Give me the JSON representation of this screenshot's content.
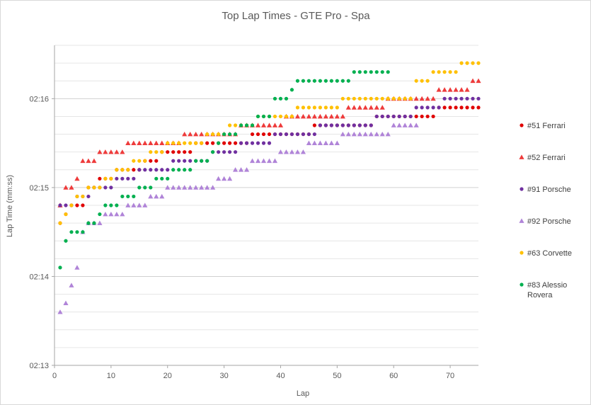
{
  "chart_data": {
    "type": "scatter",
    "title": "Top Lap Times - GTE Pro - Spa",
    "xlabel": "Lap",
    "ylabel": "Lap Time (mm:ss)",
    "xlim": [
      0,
      75
    ],
    "ylim": [
      "02:13",
      "02:16.6"
    ],
    "x_ticks": [
      "0",
      "10",
      "20",
      "30",
      "40",
      "50",
      "60",
      "70"
    ],
    "y_ticks": [
      "02:13",
      "02:14",
      "02:15",
      "02:16"
    ],
    "grid": "horizontal",
    "legend_position": "right",
    "series": [
      {
        "name": "#51 Ferrari",
        "marker": "circle",
        "color": "#e00000",
        "x": [
          1,
          2,
          3,
          4,
          5,
          6,
          7,
          8,
          9,
          10,
          11,
          12,
          13,
          14,
          15,
          16,
          17,
          18,
          19,
          20,
          21,
          22,
          23,
          24,
          25,
          26,
          27,
          28,
          29,
          30,
          31,
          32,
          33,
          34,
          35,
          36,
          37,
          38,
          39,
          40,
          41,
          42,
          43,
          44,
          45,
          46,
          47,
          48,
          49,
          50,
          51,
          52,
          53,
          54,
          55,
          56,
          57,
          58,
          59,
          60,
          61,
          62,
          63,
          64,
          65,
          66,
          67,
          68,
          69,
          70,
          71,
          72,
          73,
          74,
          75
        ],
        "y": [
          "02:14.6",
          "02:14.7",
          "02:14.8",
          "02:14.8",
          "02:14.8",
          "02:15",
          "02:15",
          "02:15.1",
          "02:15.1",
          "02:15.1",
          "02:15.2",
          "02:15.2",
          "02:15.2",
          "02:15.2",
          "02:15.2",
          "02:15.3",
          "02:15.3",
          "02:15.3",
          "02:15.4",
          "02:15.4",
          "02:15.4",
          "02:15.4",
          "02:15.4",
          "02:15.4",
          "02:15.5",
          "02:15.5",
          "02:15.5",
          "02:15.5",
          "02:15.5",
          "02:15.5",
          "02:15.5",
          "02:15.5",
          "02:15.5",
          "02:15.5",
          "02:15.6",
          "02:15.6",
          "02:15.6",
          "02:15.6",
          "02:15.6",
          "02:15.6",
          "02:15.6",
          "02:15.6",
          "02:15.6",
          "02:15.6",
          "02:15.6",
          "02:15.7",
          "02:15.7",
          "02:15.7",
          "02:15.7",
          "02:15.7",
          "02:15.7",
          "02:15.7",
          "02:15.7",
          "02:15.7",
          "02:15.7",
          "02:15.7",
          "02:15.8",
          "02:15.8",
          "02:15.8",
          "02:15.8",
          "02:15.8",
          "02:15.8",
          "02:15.8",
          "02:15.8",
          "02:15.8",
          "02:15.8",
          "02:15.8",
          "02:15.9",
          "02:15.9",
          "02:15.9",
          "02:15.9",
          "02:15.9",
          "02:15.9",
          "02:15.9",
          "02:15.9"
        ]
      },
      {
        "name": "#52 Ferrari",
        "marker": "triangle",
        "color": "#ee3b3b",
        "x": [
          1,
          2,
          3,
          4,
          5,
          6,
          7,
          8,
          9,
          10,
          11,
          12,
          13,
          14,
          15,
          16,
          17,
          18,
          19,
          20,
          21,
          22,
          23,
          24,
          25,
          26,
          27,
          28,
          29,
          30,
          31,
          32,
          33,
          34,
          35,
          36,
          37,
          38,
          39,
          40,
          41,
          42,
          43,
          44,
          45,
          46,
          47,
          48,
          49,
          50,
          51,
          52,
          53,
          54,
          55,
          56,
          57,
          58,
          59,
          60,
          61,
          62,
          63,
          64,
          65,
          66,
          67,
          68,
          69,
          70,
          71,
          72,
          73,
          74,
          75
        ],
        "y": [
          "02:14.8",
          "02:15",
          "02:15",
          "02:15.1",
          "02:15.3",
          "02:15.3",
          "02:15.3",
          "02:15.4",
          "02:15.4",
          "02:15.4",
          "02:15.4",
          "02:15.4",
          "02:15.5",
          "02:15.5",
          "02:15.5",
          "02:15.5",
          "02:15.5",
          "02:15.5",
          "02:15.5",
          "02:15.5",
          "02:15.5",
          "02:15.5",
          "02:15.6",
          "02:15.6",
          "02:15.6",
          "02:15.6",
          "02:15.6",
          "02:15.6",
          "02:15.6",
          "02:15.6",
          "02:15.6",
          "02:15.6",
          "02:15.7",
          "02:15.7",
          "02:15.7",
          "02:15.7",
          "02:15.7",
          "02:15.7",
          "02:15.7",
          "02:15.7",
          "02:15.8",
          "02:15.8",
          "02:15.8",
          "02:15.8",
          "02:15.8",
          "02:15.8",
          "02:15.8",
          "02:15.8",
          "02:15.8",
          "02:15.8",
          "02:15.8",
          "02:15.9",
          "02:15.9",
          "02:15.9",
          "02:15.9",
          "02:15.9",
          "02:15.9",
          "02:15.9",
          "02:16",
          "02:16",
          "02:16",
          "02:16",
          "02:16",
          "02:16",
          "02:16",
          "02:16",
          "02:16",
          "02:16.1",
          "02:16.1",
          "02:16.1",
          "02:16.1",
          "02:16.1",
          "02:16.1",
          "02:16.2",
          "02:16.2"
        ]
      },
      {
        "name": "#91 Porsche",
        "marker": "circle",
        "color": "#7030a0",
        "x": [
          1,
          2,
          3,
          4,
          5,
          6,
          7,
          8,
          9,
          10,
          11,
          12,
          13,
          14,
          15,
          16,
          17,
          18,
          19,
          20,
          21,
          22,
          23,
          24,
          25,
          26,
          27,
          28,
          29,
          30,
          31,
          32,
          33,
          34,
          35,
          36,
          37,
          38,
          39,
          40,
          41,
          42,
          43,
          44,
          45,
          46,
          47,
          48,
          49,
          50,
          51,
          52,
          53,
          54,
          55,
          56,
          57,
          58,
          59,
          60,
          61,
          62,
          63,
          64,
          65,
          66,
          67,
          68,
          69,
          70,
          71,
          72,
          73,
          74,
          75
        ],
        "y": [
          "02:14.8",
          "02:14.8",
          "02:14.8",
          "02:14.9",
          "02:14.9",
          "02:14.9",
          "02:15",
          "02:15",
          "02:15",
          "02:15",
          "02:15.1",
          "02:15.1",
          "02:15.1",
          "02:15.1",
          "02:15.2",
          "02:15.2",
          "02:15.2",
          "02:15.2",
          "02:15.2",
          "02:15.2",
          "02:15.3",
          "02:15.3",
          "02:15.3",
          "02:15.3",
          "02:15.3",
          "02:15.3",
          "02:15.3",
          "02:15.4",
          "02:15.4",
          "02:15.4",
          "02:15.4",
          "02:15.4",
          "02:15.5",
          "02:15.5",
          "02:15.5",
          "02:15.5",
          "02:15.5",
          "02:15.5",
          "02:15.6",
          "02:15.6",
          "02:15.6",
          "02:15.6",
          "02:15.6",
          "02:15.6",
          "02:15.6",
          "02:15.6",
          "02:15.7",
          "02:15.7",
          "02:15.7",
          "02:15.7",
          "02:15.7",
          "02:15.7",
          "02:15.7",
          "02:15.7",
          "02:15.7",
          "02:15.7",
          "02:15.8",
          "02:15.8",
          "02:15.8",
          "02:15.8",
          "02:15.8",
          "02:15.8",
          "02:15.8",
          "02:15.9",
          "02:15.9",
          "02:15.9",
          "02:15.9",
          "02:15.9",
          "02:16",
          "02:16",
          "02:16",
          "02:16",
          "02:16",
          "02:16",
          "02:16"
        ]
      },
      {
        "name": "#92 Porsche",
        "marker": "triangle",
        "color": "#b084d8",
        "x": [
          1,
          2,
          3,
          4,
          5,
          6,
          7,
          8,
          9,
          10,
          11,
          12,
          13,
          14,
          15,
          16,
          17,
          18,
          19,
          20,
          21,
          22,
          23,
          24,
          25,
          26,
          27,
          28,
          29,
          30,
          31,
          32,
          33,
          34,
          35,
          36,
          37,
          38,
          39,
          40,
          41,
          42,
          43,
          44,
          45,
          46,
          47,
          48,
          49,
          50,
          51,
          52,
          53,
          54,
          55,
          56,
          57,
          58,
          59,
          60,
          61,
          62,
          63,
          64
        ],
        "y": [
          "02:13.6",
          "02:13.7",
          "02:13.9",
          "02:14.1",
          "02:14.5",
          "02:14.6",
          "02:14.6",
          "02:14.6",
          "02:14.7",
          "02:14.7",
          "02:14.7",
          "02:14.7",
          "02:14.8",
          "02:14.8",
          "02:14.8",
          "02:14.8",
          "02:14.9",
          "02:14.9",
          "02:14.9",
          "02:15",
          "02:15",
          "02:15",
          "02:15",
          "02:15",
          "02:15",
          "02:15",
          "02:15",
          "02:15",
          "02:15.1",
          "02:15.1",
          "02:15.1",
          "02:15.2",
          "02:15.2",
          "02:15.2",
          "02:15.3",
          "02:15.3",
          "02:15.3",
          "02:15.3",
          "02:15.3",
          "02:15.4",
          "02:15.4",
          "02:15.4",
          "02:15.4",
          "02:15.4",
          "02:15.5",
          "02:15.5",
          "02:15.5",
          "02:15.5",
          "02:15.5",
          "02:15.5",
          "02:15.6",
          "02:15.6",
          "02:15.6",
          "02:15.6",
          "02:15.6",
          "02:15.6",
          "02:15.6",
          "02:15.6",
          "02:15.6",
          "02:15.7",
          "02:15.7",
          "02:15.7",
          "02:15.7",
          "02:15.7"
        ]
      },
      {
        "name": "#63 Corvette",
        "marker": "circle",
        "color": "#ffc000",
        "x": [
          1,
          2,
          3,
          4,
          5,
          6,
          7,
          8,
          9,
          10,
          11,
          12,
          13,
          14,
          15,
          16,
          17,
          18,
          19,
          20,
          21,
          22,
          23,
          24,
          25,
          26,
          27,
          28,
          29,
          30,
          31,
          32,
          33,
          34,
          35,
          36,
          37,
          38,
          39,
          40,
          41,
          42,
          43,
          44,
          45,
          46,
          47,
          48,
          49,
          50,
          51,
          52,
          53,
          54,
          55,
          56,
          57,
          58,
          59,
          60,
          61,
          62,
          63,
          64,
          65,
          66,
          67,
          68,
          69,
          70,
          71,
          72,
          73,
          74,
          75
        ],
        "y": [
          "02:14.6",
          "02:14.7",
          "02:14.8",
          "02:14.9",
          "02:14.9",
          "02:15",
          "02:15",
          "02:15",
          "02:15.1",
          "02:15.1",
          "02:15.2",
          "02:15.2",
          "02:15.2",
          "02:15.3",
          "02:15.3",
          "02:15.3",
          "02:15.4",
          "02:15.4",
          "02:15.4",
          "02:15.5",
          "02:15.5",
          "02:15.5",
          "02:15.5",
          "02:15.5",
          "02:15.5",
          "02:15.5",
          "02:15.6",
          "02:15.6",
          "02:15.6",
          "02:15.6",
          "02:15.7",
          "02:15.7",
          "02:15.7",
          "02:15.7",
          "02:15.7",
          "02:15.8",
          "02:15.8",
          "02:15.8",
          "02:15.8",
          "02:15.8",
          "02:15.8",
          "02:15.8",
          "02:15.9",
          "02:15.9",
          "02:15.9",
          "02:15.9",
          "02:15.9",
          "02:15.9",
          "02:15.9",
          "02:15.9",
          "02:16",
          "02:16",
          "02:16",
          "02:16",
          "02:16",
          "02:16",
          "02:16",
          "02:16",
          "02:16",
          "02:16",
          "02:16",
          "02:16",
          "02:16",
          "02:16.2",
          "02:16.2",
          "02:16.2",
          "02:16.3",
          "02:16.3",
          "02:16.3",
          "02:16.3",
          "02:16.3",
          "02:16.4",
          "02:16.4",
          "02:16.4",
          "02:16.4"
        ]
      },
      {
        "name": "#83 Alessio Rovera",
        "marker": "circle",
        "color": "#00b050",
        "x": [
          1,
          2,
          3,
          4,
          5,
          6,
          7,
          8,
          9,
          10,
          11,
          12,
          13,
          14,
          15,
          16,
          17,
          18,
          19,
          20,
          21,
          22,
          23,
          24,
          25,
          26,
          27,
          28,
          29,
          30,
          31,
          32,
          33,
          34,
          35,
          36,
          37,
          38,
          39,
          40,
          41,
          42,
          43,
          44,
          45,
          46,
          47,
          48,
          49,
          50,
          51,
          52,
          53,
          54,
          55,
          56,
          57,
          58,
          59
        ],
        "y": [
          "02:14.1",
          "02:14.4",
          "02:14.5",
          "02:14.5",
          "02:14.5",
          "02:14.6",
          "02:14.6",
          "02:14.7",
          "02:14.8",
          "02:14.8",
          "02:14.8",
          "02:14.9",
          "02:14.9",
          "02:14.9",
          "02:15",
          "02:15",
          "02:15",
          "02:15.1",
          "02:15.1",
          "02:15.1",
          "02:15.2",
          "02:15.2",
          "02:15.2",
          "02:15.2",
          "02:15.3",
          "02:15.3",
          "02:15.3",
          "02:15.4",
          "02:15.5",
          "02:15.6",
          "02:15.6",
          "02:15.6",
          "02:15.7",
          "02:15.7",
          "02:15.7",
          "02:15.8",
          "02:15.8",
          "02:15.8",
          "02:16",
          "02:16",
          "02:16",
          "02:16.1",
          "02:16.2",
          "02:16.2",
          "02:16.2",
          "02:16.2",
          "02:16.2",
          "02:16.2",
          "02:16.2",
          "02:16.2",
          "02:16.2",
          "02:16.2",
          "02:16.3",
          "02:16.3",
          "02:16.3",
          "02:16.3",
          "02:16.3",
          "02:16.3",
          "02:16.3"
        ]
      }
    ]
  }
}
